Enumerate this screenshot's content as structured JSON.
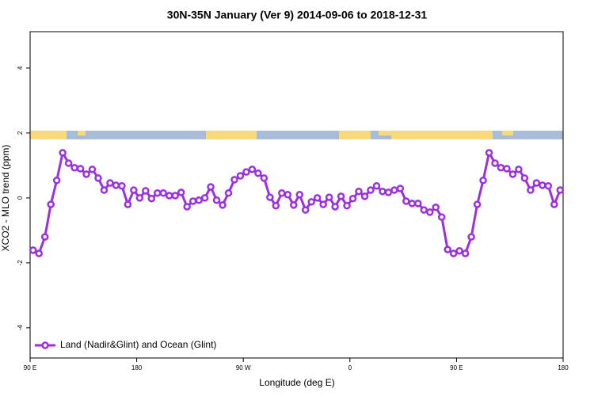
{
  "chart_data": {
    "type": "line",
    "title": "30N-35N January (Ver 9)   2014-09-06 to 2018-12-31",
    "x_label": "Longitude (deg E)",
    "y_label": "XCO2 - MLO trend (ppm)",
    "xlim": [
      90,
      540
    ],
    "ylim": [
      -4.93,
      5.12
    ],
    "xticks": [
      {
        "value": 90,
        "label": "90 E"
      },
      180,
      {
        "value": 270,
        "label": "90 W"
      },
      {
        "value": 360,
        "label": "0"
      },
      {
        "value": 450,
        "label": "90 E"
      },
      {
        "value": 540,
        "label": "180"
      }
    ],
    "yticks": [
      -4,
      -2,
      0,
      2,
      4
    ],
    "legend_position": "bottom-left",
    "x": [
      92.5,
      97.5,
      102.5,
      107.5,
      112.5,
      117.5,
      122.5,
      127.5,
      132.5,
      137.5,
      142.5,
      147.5,
      152.5,
      157.5,
      162.5,
      167.5,
      172.5,
      177.5,
      182.5,
      187.5,
      192.5,
      197.5,
      202.5,
      207.5,
      212.5,
      217.5,
      222.5,
      227.5,
      232.5,
      237.5,
      242.5,
      247.5,
      252.5,
      257.5,
      262.5,
      267.5,
      272.5,
      277.5,
      282.5,
      287.5,
      292.5,
      297.5,
      302.5,
      307.5,
      312.5,
      317.5,
      322.5,
      327.5,
      332.5,
      337.5,
      342.5,
      347.5,
      352.5,
      357.5,
      362.5,
      367.5,
      372.5,
      377.5,
      382.5,
      387.5,
      392.5,
      397.5,
      402.5,
      407.5,
      412.5,
      417.5,
      422.5,
      427.5,
      432.5,
      437.5,
      442.5,
      447.5,
      452.5,
      457.5,
      462.5,
      467.5,
      472.5,
      477.5,
      482.5,
      487.5,
      492.5,
      497.5,
      502.5,
      507.5,
      512.5,
      517.5,
      522.5,
      527.5,
      532.5,
      537.5
    ],
    "series": [
      {
        "name": "Land (Nadir&Glint) and Ocean (Glint)",
        "color": "#9b30e0",
        "values": [
          -1.61,
          -1.71,
          -1.2,
          -0.2,
          0.54,
          1.39,
          1.07,
          0.93,
          0.9,
          0.73,
          0.88,
          0.61,
          0.24,
          0.46,
          0.39,
          0.37,
          -0.2,
          0.24,
          0,
          0.22,
          -0.02,
          0.15,
          0.15,
          0.07,
          0.07,
          0.17,
          -0.27,
          -0.1,
          -0.07,
          0,
          0.34,
          -0.07,
          -0.22,
          0.15,
          0.56,
          0.68,
          0.8,
          0.88,
          0.76,
          0.61,
          0.02,
          -0.24,
          0.15,
          0.1,
          -0.22,
          0.1,
          -0.37,
          -0.12,
          0,
          -0.2,
          0.02,
          -0.27,
          0.05,
          -0.24,
          -0.02,
          0.2,
          0.05,
          0.24,
          0.37,
          0.2,
          0.17,
          0.24,
          0.29,
          -0.1,
          -0.17,
          -0.17,
          -0.37,
          -0.44,
          -0.29,
          -0.59,
          -1.59,
          -1.71,
          -1.63,
          -1.71,
          -1.2,
          -0.2,
          0.54,
          1.39,
          1.07,
          0.93,
          0.9,
          0.73,
          0.88,
          0.61,
          0.24,
          0.46,
          0.39,
          0.37,
          -0.2,
          0.24
        ]
      }
    ]
  }
}
